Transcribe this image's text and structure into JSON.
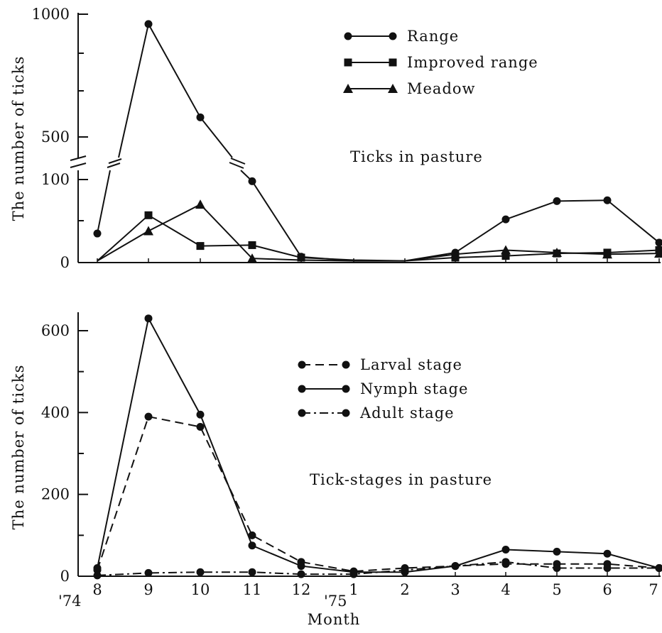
{
  "chart_data": [
    {
      "type": "line",
      "title": "",
      "annotation": "Ticks in pasture",
      "ylabel": "The number of ticks",
      "xlabel": "",
      "y_axis_break": true,
      "y_ticks_lower": [
        0,
        100
      ],
      "y_ticks_upper": [
        500,
        1000
      ],
      "y_tick_labels": [
        "0",
        "100",
        "500",
        "1000"
      ],
      "x_tick_labels": [],
      "legend_position": "top-right",
      "series": [
        {
          "name": "Range",
          "marker": "circle",
          "line": "solid",
          "x": [
            "8",
            "9",
            "10",
            "11",
            "12",
            "1",
            "2",
            "3",
            "4",
            "5",
            "6",
            "7"
          ],
          "values": [
            35,
            960,
            580,
            98,
            7,
            2,
            2,
            12,
            52,
            74,
            75,
            24
          ]
        },
        {
          "name": "Improved range",
          "marker": "square",
          "line": "solid",
          "x": [
            "8",
            "9",
            "10",
            "11",
            "12",
            "1",
            "2",
            "3",
            "4",
            "5",
            "6",
            "7"
          ],
          "values": [
            2,
            57,
            20,
            21,
            6,
            3,
            2,
            6,
            8,
            11,
            12,
            15
          ]
        },
        {
          "name": "Meadow",
          "marker": "triangle",
          "line": "solid",
          "x": [
            "8",
            "9",
            "10",
            "11",
            "12",
            "1",
            "2",
            "3",
            "4",
            "5",
            "6",
            "7"
          ],
          "values": [
            2,
            38,
            70,
            5,
            3,
            2,
            2,
            10,
            15,
            12,
            10,
            11
          ]
        }
      ]
    },
    {
      "type": "line",
      "title": "",
      "annotation": "Tick-stages in pasture",
      "ylabel": "The number of ticks",
      "xlabel": "Month",
      "ylim": [
        0,
        620
      ],
      "y_ticks": [
        0,
        200,
        400,
        600
      ],
      "y_tick_labels": [
        "0",
        "200",
        "400",
        "600"
      ],
      "x_tick_labels": [
        "8",
        "9",
        "10",
        "11",
        "12",
        "1",
        "2",
        "3",
        "4",
        "5",
        "6",
        "7"
      ],
      "year_labels": [
        {
          "label": "'74",
          "at": "8"
        },
        {
          "label": "'75",
          "at": "1"
        }
      ],
      "legend_position": "top-right",
      "series": [
        {
          "name": "Larval stage",
          "marker": "circle",
          "line": "dashed",
          "x": [
            "8",
            "9",
            "10",
            "11",
            "12",
            "1",
            "2",
            "3",
            "4",
            "5",
            "6",
            "7"
          ],
          "values": [
            15,
            390,
            365,
            100,
            35,
            12,
            20,
            25,
            30,
            30,
            30,
            20
          ]
        },
        {
          "name": "Nymph stage",
          "marker": "circle",
          "line": "solid",
          "x": [
            "8",
            "9",
            "10",
            "11",
            "12",
            "1",
            "2",
            "3",
            "4",
            "5",
            "6",
            "7"
          ],
          "values": [
            20,
            630,
            395,
            75,
            25,
            10,
            10,
            25,
            65,
            60,
            55,
            20
          ]
        },
        {
          "name": "Adult stage",
          "marker": "circle",
          "line": "dashdot",
          "x": [
            "8",
            "9",
            "10",
            "11",
            "12",
            "1",
            "2",
            "3",
            "4",
            "5",
            "6",
            "7"
          ],
          "values": [
            2,
            8,
            10,
            10,
            5,
            5,
            15,
            25,
            35,
            20,
            20,
            20
          ]
        }
      ]
    }
  ]
}
